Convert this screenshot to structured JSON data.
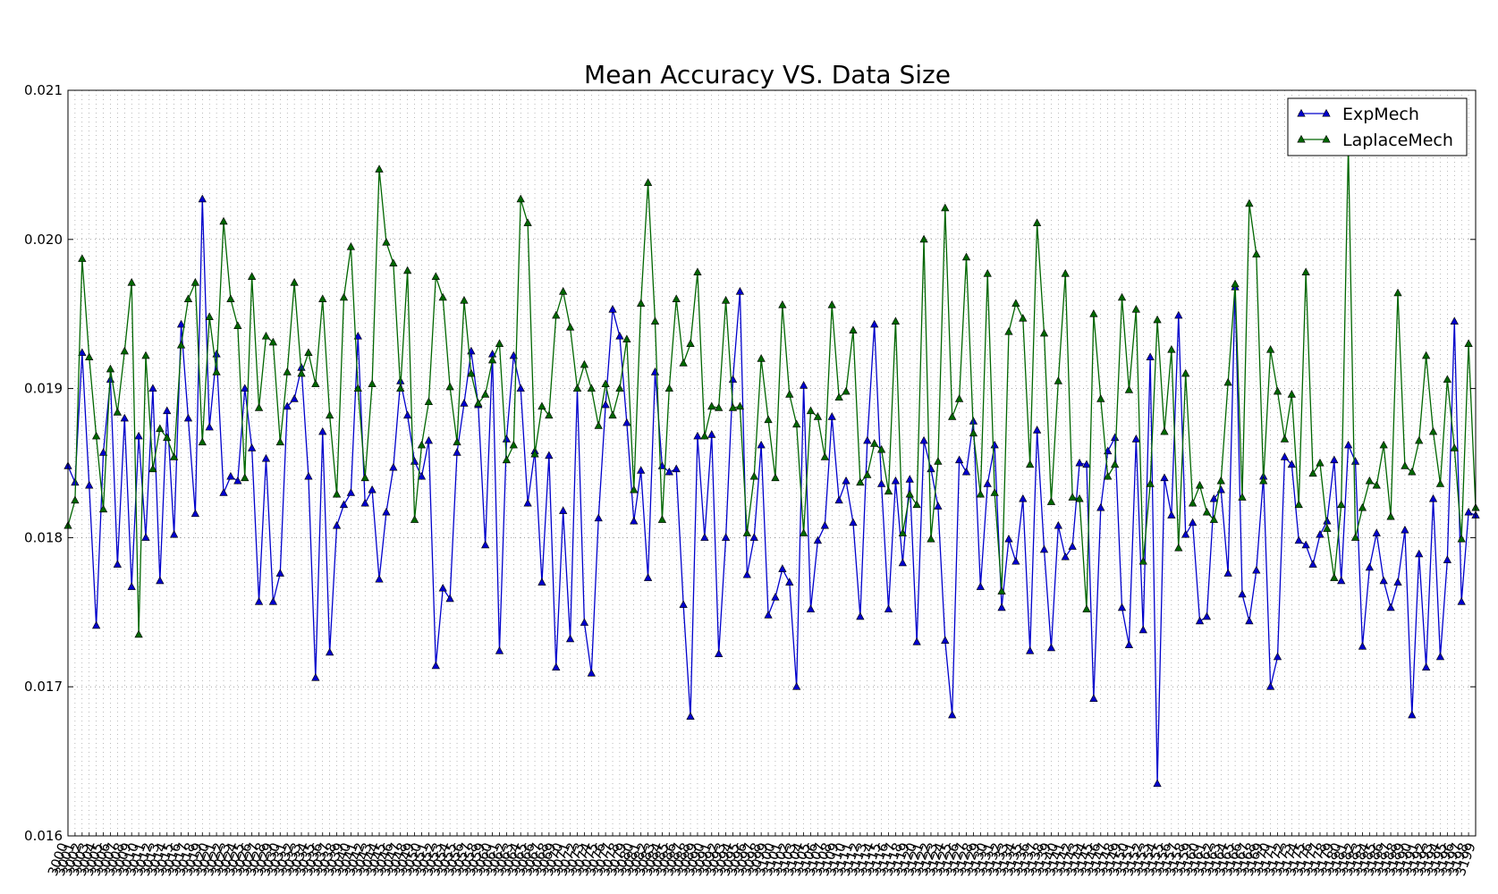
{
  "chart_data": {
    "type": "line",
    "title": "Mean Accuracy VS. Data Size",
    "xlabel": "",
    "ylabel": "",
    "x_start": 3000,
    "x_step": 1,
    "xlim": [
      3000,
      3199
    ],
    "ylim": [
      0.016,
      0.021
    ],
    "y_ticks": [
      0.016,
      0.017,
      0.018,
      0.019,
      0.02,
      0.021
    ],
    "y_tick_labels": [
      "0.016",
      "0.017",
      "0.018",
      "0.019",
      "0.020",
      "0.021"
    ],
    "grid": true,
    "legend_position": "top-right",
    "series": [
      {
        "name": "ExpMech",
        "color": "#0000cc",
        "marker": "triangle-up",
        "values": [
          0.01848,
          0.01837,
          0.01924,
          0.01835,
          0.01741,
          0.01857,
          0.01906,
          0.01782,
          0.0188,
          0.01767,
          0.01868,
          0.018,
          0.019,
          0.01771,
          0.01885,
          0.01802,
          0.01943,
          0.0188,
          0.01816,
          0.02027,
          0.01874,
          0.01923,
          0.0183,
          0.01841,
          0.01838,
          0.019,
          0.0186,
          0.01757,
          0.01853,
          0.01757,
          0.01776,
          0.01888,
          0.01893,
          0.01914,
          0.01841,
          0.01706,
          0.01871,
          0.01723,
          0.01808,
          0.01822,
          0.0183,
          0.01935,
          0.01823,
          0.01832,
          0.01772,
          0.01817,
          0.01847,
          0.01905,
          0.01882,
          0.01851,
          0.01841,
          0.01865,
          0.01714,
          0.01766,
          0.01759,
          0.01857,
          0.0189,
          0.01925,
          0.01889,
          0.01795,
          0.01923,
          0.01724,
          0.01866,
          0.01922,
          0.019,
          0.01823,
          0.01858,
          0.0177,
          0.01855,
          0.01713,
          0.01818,
          0.01732,
          0.019,
          0.01743,
          0.01709,
          0.01813,
          0.01889,
          0.01953,
          0.01935,
          0.01877,
          0.01811,
          0.01845,
          0.01773,
          0.01911,
          0.01848,
          0.01844,
          0.01846,
          0.01755,
          0.0168,
          0.01868,
          0.018,
          0.01869,
          0.01722,
          0.018,
          0.01906,
          0.01965,
          0.01775,
          0.018,
          0.01862,
          0.01748,
          0.0176,
          0.01779,
          0.0177,
          0.017,
          0.01902,
          0.01752,
          0.01798,
          0.01808,
          0.01881,
          0.01825,
          0.01838,
          0.0181,
          0.01747,
          0.01865,
          0.01943,
          0.01836,
          0.01752,
          0.01838,
          0.01783,
          0.01839,
          0.0173,
          0.01865,
          0.01846,
          0.01821,
          0.01731,
          0.01681,
          0.01852,
          0.01844,
          0.01878,
          0.01767,
          0.01836,
          0.01862,
          0.01753,
          0.01799,
          0.01784,
          0.01826,
          0.01724,
          0.01872,
          0.01792,
          0.01726,
          0.01808,
          0.01787,
          0.01794,
          0.0185,
          0.01849,
          0.01692,
          0.0182,
          0.01858,
          0.01867,
          0.01753,
          0.01728,
          0.01866,
          0.01738,
          0.01921,
          0.01635,
          0.0184,
          0.01815,
          0.01949,
          0.01802,
          0.0181,
          0.01744,
          0.01747,
          0.01826,
          0.01832,
          0.01776,
          0.01968,
          0.01762,
          0.01744,
          0.01778,
          0.01841,
          0.017,
          0.0172,
          0.01854,
          0.01849,
          0.01798,
          0.01795,
          0.01782,
          0.01802,
          0.01811,
          0.01852,
          0.01771,
          0.01862,
          0.01851,
          0.01727,
          0.0178,
          0.01803,
          0.01771,
          0.01753,
          0.0177,
          0.01805,
          0.01681,
          0.01789,
          0.01713,
          0.01826,
          0.0172,
          0.01785,
          0.01945,
          0.01757,
          0.01817,
          0.01815
        ]
      },
      {
        "name": "LaplaceMech",
        "color": "#006600",
        "marker": "triangle-up",
        "values": [
          0.01808,
          0.01825,
          0.01987,
          0.01921,
          0.01868,
          0.01819,
          0.01913,
          0.01884,
          0.01925,
          0.01971,
          0.01735,
          0.01922,
          0.01846,
          0.01873,
          0.01867,
          0.01854,
          0.01929,
          0.0196,
          0.01971,
          0.01864,
          0.01948,
          0.01911,
          0.02012,
          0.0196,
          0.01942,
          0.0184,
          0.01975,
          0.01887,
          0.01935,
          0.01931,
          0.01864,
          0.01911,
          0.01971,
          0.0191,
          0.01924,
          0.01903,
          0.0196,
          0.01882,
          0.01829,
          0.01961,
          0.01995,
          0.019,
          0.0184,
          0.01903,
          0.02047,
          0.01998,
          0.01984,
          0.019,
          0.01979,
          0.01812,
          0.01862,
          0.01891,
          0.01975,
          0.01961,
          0.01901,
          0.01864,
          0.01959,
          0.0191,
          0.0189,
          0.01896,
          0.01919,
          0.0193,
          0.01852,
          0.01862,
          0.02027,
          0.02011,
          0.01856,
          0.01888,
          0.01882,
          0.01949,
          0.01965,
          0.01941,
          0.019,
          0.01916,
          0.019,
          0.01875,
          0.01903,
          0.01882,
          0.019,
          0.01933,
          0.01832,
          0.01957,
          0.02038,
          0.01945,
          0.01812,
          0.019,
          0.0196,
          0.01917,
          0.0193,
          0.01978,
          0.01868,
          0.01888,
          0.01887,
          0.01959,
          0.01887,
          0.01888,
          0.01803,
          0.01841,
          0.0192,
          0.01879,
          0.0184,
          0.01956,
          0.01896,
          0.01876,
          0.01803,
          0.01885,
          0.01881,
          0.01854,
          0.01956,
          0.01894,
          0.01898,
          0.01939,
          0.01837,
          0.01842,
          0.01863,
          0.01859,
          0.01831,
          0.01945,
          0.01803,
          0.01829,
          0.01822,
          0.02,
          0.01799,
          0.01851,
          0.02021,
          0.01881,
          0.01893,
          0.01988,
          0.0187,
          0.01829,
          0.01977,
          0.0183,
          0.01764,
          0.01938,
          0.01957,
          0.01947,
          0.01849,
          0.02011,
          0.01937,
          0.01824,
          0.01905,
          0.01977,
          0.01827,
          0.01826,
          0.01752,
          0.0195,
          0.01893,
          0.01841,
          0.01849,
          0.01961,
          0.01899,
          0.01953,
          0.01784,
          0.01836,
          0.01946,
          0.01871,
          0.01926,
          0.01793,
          0.0191,
          0.01823,
          0.01835,
          0.01817,
          0.01812,
          0.01838,
          0.01904,
          0.0197,
          0.01827,
          0.02024,
          0.0199,
          0.01838,
          0.01926,
          0.01898,
          0.01866,
          0.01896,
          0.01822,
          0.01978,
          0.01843,
          0.0185,
          0.01806,
          0.01773,
          0.01822,
          0.02063,
          0.018,
          0.0182,
          0.01838,
          0.01835,
          0.01862,
          0.01814,
          0.01964,
          0.01848,
          0.01844,
          0.01865,
          0.01922,
          0.01871,
          0.01836,
          0.01906,
          0.0186,
          0.01799,
          0.0193,
          0.0182
        ]
      }
    ]
  }
}
